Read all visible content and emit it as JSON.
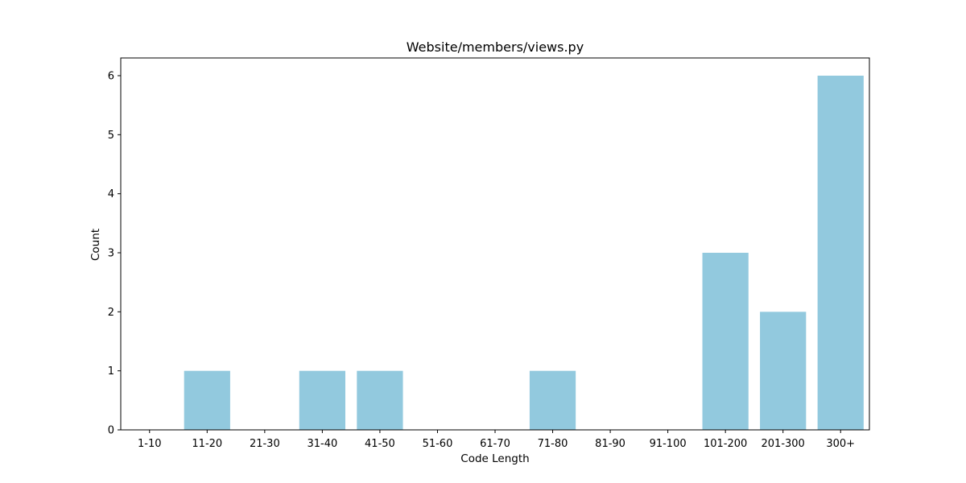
{
  "chart_data": {
    "type": "bar",
    "title": "Website/members/views.py",
    "xlabel": "Code Length",
    "ylabel": "Count",
    "categories": [
      "1-10",
      "11-20",
      "21-30",
      "31-40",
      "41-50",
      "51-60",
      "61-70",
      "71-80",
      "81-90",
      "91-100",
      "101-200",
      "201-300",
      "300+"
    ],
    "values": [
      0,
      1,
      0,
      1,
      1,
      0,
      0,
      1,
      0,
      0,
      3,
      2,
      6
    ],
    "ylim": [
      0,
      6.3
    ],
    "yticks": [
      0,
      1,
      2,
      3,
      4,
      5,
      6
    ],
    "grid": false,
    "legend": "none",
    "bar_color": "#92c9de"
  }
}
